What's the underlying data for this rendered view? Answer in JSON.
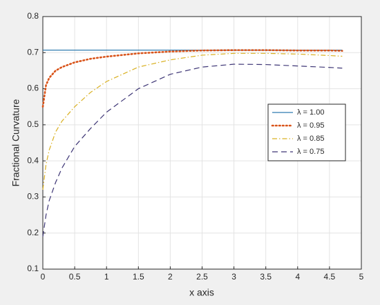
{
  "chart_data": {
    "type": "line",
    "xlabel": "x axis",
    "ylabel": "Fractional Curvature",
    "x": [
      0,
      0.05,
      0.1,
      0.2,
      0.3,
      0.5,
      0.75,
      1,
      1.5,
      2,
      2.5,
      3,
      3.5,
      4,
      4.5,
      4.7
    ],
    "series": [
      {
        "name": "λ = 1.00",
        "color": "#2f7bb0",
        "line_style": "solid",
        "values": [
          0.707,
          0.707,
          0.707,
          0.707,
          0.707,
          0.707,
          0.707,
          0.707,
          0.707,
          0.707,
          0.707,
          0.707,
          0.707,
          0.707,
          0.707,
          0.707
        ]
      },
      {
        "name": "λ = 0.95",
        "color": "#d95319",
        "line_style": "dotted",
        "values": [
          0.55,
          0.61,
          0.63,
          0.65,
          0.66,
          0.673,
          0.683,
          0.689,
          0.698,
          0.703,
          0.706,
          0.707,
          0.707,
          0.706,
          0.706,
          0.705
        ]
      },
      {
        "name": "λ = 0.85",
        "color": "#d9b020",
        "line_style": "dashdot",
        "values": [
          0.32,
          0.39,
          0.43,
          0.48,
          0.51,
          0.55,
          0.59,
          0.62,
          0.66,
          0.68,
          0.693,
          0.698,
          0.698,
          0.696,
          0.692,
          0.69
        ]
      },
      {
        "name": "λ = 0.75",
        "color": "#3d3575",
        "line_style": "dashed",
        "values": [
          0.19,
          0.25,
          0.29,
          0.34,
          0.38,
          0.44,
          0.49,
          0.535,
          0.6,
          0.64,
          0.66,
          0.668,
          0.667,
          0.663,
          0.659,
          0.657
        ]
      }
    ],
    "xlim": [
      0,
      5
    ],
    "xticks": [
      0,
      0.5,
      1,
      1.5,
      2,
      2.5,
      3,
      3.5,
      4,
      4.5,
      5
    ],
    "ylim": [
      0.1,
      0.8
    ],
    "yticks": [
      0.1,
      0.2,
      0.3,
      0.4,
      0.5,
      0.6,
      0.7,
      0.8
    ],
    "grid": true,
    "legend": "right"
  }
}
